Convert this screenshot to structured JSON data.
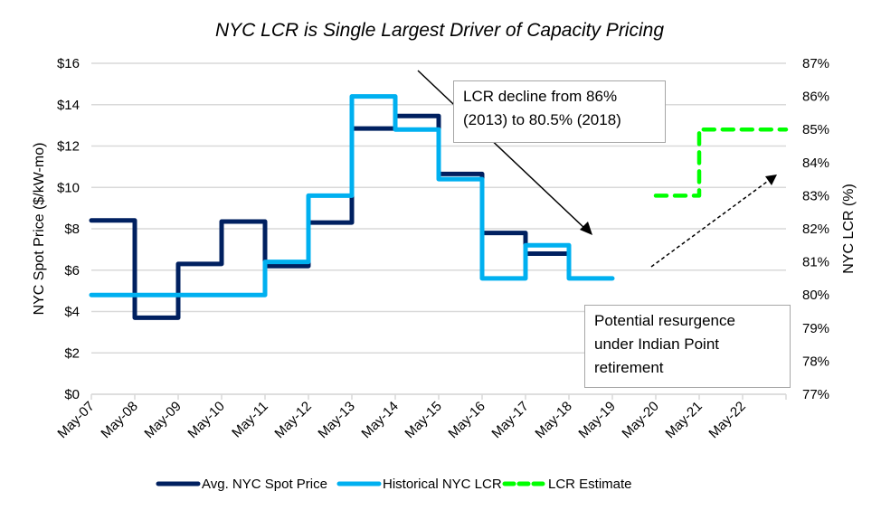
{
  "chart_data": {
    "type": "line",
    "title": "NYC LCR is Single Largest Driver of Capacity Pricing",
    "xlabel": "",
    "ylabel": "NYC Spot Price ($/kW-mo)",
    "y2label": "NYC LCR (%)",
    "x_ticks": [
      "May-07",
      "May-08",
      "May-09",
      "May-10",
      "May-11",
      "May-12",
      "May-13",
      "May-14",
      "May-15",
      "May-16",
      "May-17",
      "May-18",
      "May-19",
      "May-20",
      "May-21",
      "May-22"
    ],
    "xlim": [
      2007,
      2023
    ],
    "ylim": [
      0,
      16
    ],
    "y_ticks": [
      "$0",
      "$2",
      "$4",
      "$6",
      "$8",
      "$10",
      "$12",
      "$14",
      "$16"
    ],
    "y_tick_values": [
      0,
      2,
      4,
      6,
      8,
      10,
      12,
      14,
      16
    ],
    "y2lim": [
      77,
      87
    ],
    "y2_ticks": [
      "77%",
      "78%",
      "79%",
      "80%",
      "81%",
      "82%",
      "83%",
      "84%",
      "85%",
      "86%",
      "87%"
    ],
    "y2_tick_values": [
      77,
      78,
      79,
      80,
      81,
      82,
      83,
      84,
      85,
      86,
      87
    ],
    "grid": true,
    "legend_position": "bottom",
    "series": [
      {
        "name": "Avg. NYC Spot Price",
        "axis": "left",
        "style": "step",
        "color": "#002060",
        "dashed": false,
        "points": [
          [
            2007,
            8.4
          ],
          [
            2008,
            8.4
          ],
          [
            2008,
            3.7
          ],
          [
            2009,
            3.7
          ],
          [
            2009,
            6.3
          ],
          [
            2010,
            6.3
          ],
          [
            2010,
            8.35
          ],
          [
            2011,
            8.35
          ],
          [
            2011,
            6.2
          ],
          [
            2012,
            6.2
          ],
          [
            2012,
            8.3
          ],
          [
            2013,
            8.3
          ],
          [
            2013,
            12.85
          ],
          [
            2014,
            12.85
          ],
          [
            2014,
            13.45
          ],
          [
            2015,
            13.45
          ],
          [
            2015,
            10.65
          ],
          [
            2016,
            10.65
          ],
          [
            2016,
            7.8
          ],
          [
            2017,
            7.8
          ],
          [
            2017,
            6.8
          ],
          [
            2018,
            6.8
          ]
        ]
      },
      {
        "name": "Historical NYC LCR",
        "axis": "right",
        "style": "step",
        "color": "#00B0F0",
        "dashed": false,
        "points": [
          [
            2007,
            80
          ],
          [
            2011,
            80
          ],
          [
            2011,
            81
          ],
          [
            2012,
            81
          ],
          [
            2012,
            83
          ],
          [
            2013,
            83
          ],
          [
            2013,
            86
          ],
          [
            2014,
            86
          ],
          [
            2014,
            85
          ],
          [
            2015,
            85
          ],
          [
            2015,
            83.5
          ],
          [
            2016,
            83.5
          ],
          [
            2016,
            80.5
          ],
          [
            2017,
            80.5
          ],
          [
            2017,
            81.5
          ],
          [
            2018,
            81.5
          ],
          [
            2018,
            80.5
          ],
          [
            2019,
            80.5
          ]
        ]
      },
      {
        "name": "LCR Estimate",
        "axis": "right",
        "style": "step",
        "color": "#00FF00",
        "dashed": true,
        "points": [
          [
            2020,
            83
          ],
          [
            2021,
            83
          ],
          [
            2021,
            85
          ],
          [
            2023,
            85
          ]
        ]
      }
    ],
    "annotations": [
      {
        "text": "LCR decline from 86% (2013) to 80.5% (2018)",
        "arrow": "solid",
        "direction": "down-right"
      },
      {
        "text": "Potential resurgence under Indian Point retirement",
        "arrow": "dashed",
        "direction": "up-right"
      }
    ]
  },
  "annotations": {
    "decline_line1": "LCR decline from 86%",
    "decline_line2": "(2013) to 80.5% (2018)",
    "resurgence_line1": "Potential resurgence",
    "resurgence_line2": "under Indian Point",
    "resurgence_line3": "retirement"
  }
}
